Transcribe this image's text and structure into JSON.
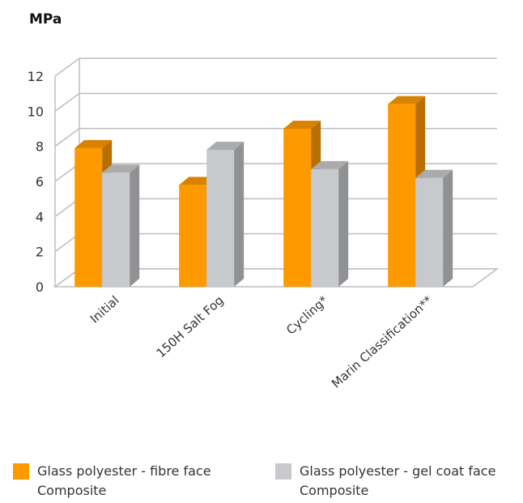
{
  "chart_data": {
    "type": "bar",
    "unit_label": "MPa",
    "categories": [
      "Initial",
      "150H Salt Fog",
      "Cycling*",
      "Marin Classification**"
    ],
    "series": [
      {
        "name_line1": "Glass polyester - fibre face",
        "name_line2": "Composite",
        "color": "#FF9900",
        "values": [
          7.9,
          5.8,
          9.0,
          10.4
        ]
      },
      {
        "name_line1": "Glass polyester - gel coat face",
        "name_line2": "Composite",
        "color": "#C8C9CC",
        "values": [
          6.5,
          7.8,
          6.7,
          6.2
        ]
      }
    ],
    "yticks": [
      0,
      2,
      4,
      6,
      8,
      10,
      12
    ],
    "ylim": [
      0,
      12
    ],
    "grid": true,
    "style": "3d",
    "legend_position": "bottom"
  }
}
